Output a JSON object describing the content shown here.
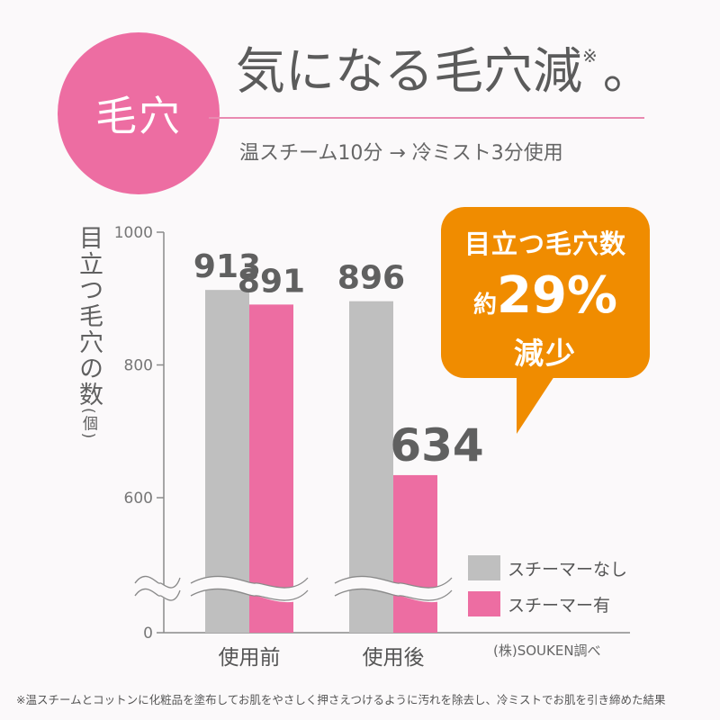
{
  "header": {
    "badge": "毛穴",
    "title": "気になる毛穴減",
    "title_mark": "※",
    "title_period": "。",
    "subtitle": "温スチーム10分 → 冷ミスト3分使用"
  },
  "callout": {
    "line1": "目立つ毛穴数",
    "prefix": "約",
    "value": "29%",
    "line3": "減少",
    "color": "#f08c00"
  },
  "source": "(株)SOUKEN調べ",
  "footnote": "※温スチームとコットンに化粧品を塗布してお肌をやさしく押さえつけるように汚れを除去し、冷ミストでお肌を引き締めた結果",
  "chart_data": {
    "type": "bar",
    "ylabel": "目立つ毛穴の数",
    "ylabel_unit": "(個)",
    "categories": [
      "使用前",
      "使用後"
    ],
    "series": [
      {
        "name": "スチーマーなし",
        "color": "#bfbfbf",
        "values": [
          913,
          896
        ]
      },
      {
        "name": "スチーマー有",
        "color": "#ed6da2",
        "values": [
          891,
          634
        ]
      }
    ],
    "yticks": [
      "1000",
      "800",
      "600",
      "0"
    ],
    "ylim": [
      0,
      1000
    ],
    "axis_break": true
  }
}
